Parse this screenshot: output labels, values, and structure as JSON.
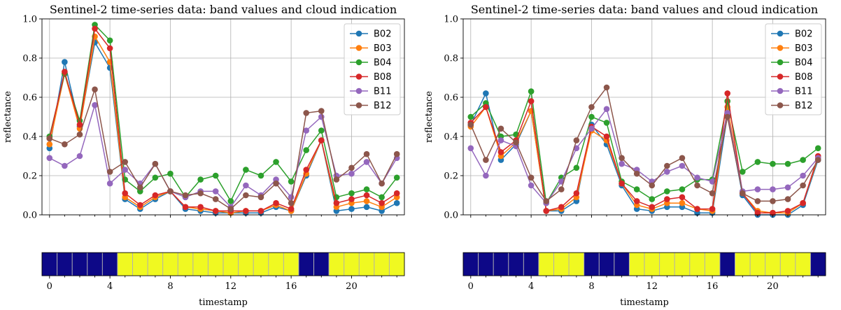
{
  "chart_data": [
    {
      "type": "line",
      "title": "Sentinel-2 time-series data: band values and cloud indication",
      "xlabel": "timestamp",
      "ylabel": "reflectance",
      "xlim": [
        -0.5,
        23.5
      ],
      "ylim": [
        0.0,
        1.0
      ],
      "yticks": [
        "0.0",
        "0.2",
        "0.4",
        "0.6",
        "0.8",
        "1.0"
      ],
      "xticks": [
        "0",
        "4",
        "8",
        "12",
        "16",
        "20"
      ],
      "grid": true,
      "legend": "top-right",
      "x": [
        0,
        1,
        2,
        3,
        4,
        5,
        6,
        7,
        8,
        9,
        10,
        11,
        12,
        13,
        14,
        15,
        16,
        17,
        18,
        19,
        20,
        21,
        22,
        23
      ],
      "series": [
        {
          "name": "B02",
          "color": "#1f77b4",
          "values": [
            0.34,
            0.78,
            0.45,
            0.88,
            0.75,
            0.08,
            0.03,
            0.08,
            0.12,
            0.03,
            0.02,
            0.01,
            0.01,
            0.01,
            0.01,
            0.04,
            0.02,
            0.2,
            0.38,
            0.02,
            0.03,
            0.04,
            0.02,
            0.06
          ]
        },
        {
          "name": "B03",
          "color": "#ff7f0e",
          "values": [
            0.36,
            0.72,
            0.44,
            0.91,
            0.78,
            0.09,
            0.04,
            0.09,
            0.12,
            0.04,
            0.03,
            0.02,
            0.01,
            0.02,
            0.02,
            0.05,
            0.02,
            0.21,
            0.38,
            0.04,
            0.06,
            0.07,
            0.04,
            0.09
          ]
        },
        {
          "name": "B04",
          "color": "#2ca02c",
          "values": [
            0.4,
            0.72,
            0.48,
            0.97,
            0.89,
            0.18,
            0.12,
            0.19,
            0.21,
            0.09,
            0.18,
            0.2,
            0.07,
            0.23,
            0.2,
            0.27,
            0.17,
            0.33,
            0.43,
            0.09,
            0.11,
            0.13,
            0.09,
            0.19
          ]
        },
        {
          "name": "B08",
          "color": "#d62728",
          "values": [
            0.39,
            0.73,
            0.46,
            0.95,
            0.85,
            0.11,
            0.05,
            0.1,
            0.12,
            0.04,
            0.04,
            0.02,
            0.02,
            0.02,
            0.02,
            0.06,
            0.03,
            0.23,
            0.38,
            0.06,
            0.08,
            0.1,
            0.06,
            0.11
          ]
        },
        {
          "name": "B11",
          "color": "#9467bd",
          "values": [
            0.29,
            0.25,
            0.3,
            0.56,
            0.16,
            0.23,
            0.16,
            0.26,
            0.12,
            0.09,
            0.12,
            0.12,
            0.04,
            0.15,
            0.1,
            0.18,
            0.09,
            0.43,
            0.5,
            0.2,
            0.21,
            0.27,
            0.16,
            0.29
          ]
        },
        {
          "name": "B12",
          "color": "#8c564b",
          "values": [
            0.39,
            0.36,
            0.41,
            0.64,
            0.22,
            0.27,
            0.14,
            0.26,
            0.12,
            0.1,
            0.11,
            0.08,
            0.03,
            0.1,
            0.09,
            0.16,
            0.06,
            0.52,
            0.53,
            0.18,
            0.24,
            0.31,
            0.16,
            0.31
          ]
        }
      ],
      "cloud_indication": {
        "type": "heatmap",
        "colormap": [
          "#0d0887",
          "#f0f921"
        ],
        "values": [
          0,
          0,
          0,
          0,
          0,
          1,
          1,
          1,
          1,
          1,
          1,
          1,
          1,
          1,
          1,
          1,
          1,
          0,
          0,
          1,
          1,
          1,
          1,
          1
        ]
      }
    },
    {
      "type": "line",
      "title": "Sentinel-2 time-series data: band values and cloud indication",
      "xlabel": "timestamp",
      "ylabel": "reflectance",
      "xlim": [
        -0.5,
        23.5
      ],
      "ylim": [
        0.0,
        1.0
      ],
      "yticks": [
        "0.0",
        "0.2",
        "0.4",
        "0.6",
        "0.8",
        "1.0"
      ],
      "xticks": [
        "0",
        "4",
        "8",
        "12",
        "16",
        "20"
      ],
      "grid": true,
      "legend": "top-right",
      "x": [
        0,
        1,
        2,
        3,
        4,
        5,
        6,
        7,
        8,
        9,
        10,
        11,
        12,
        13,
        14,
        15,
        16,
        17,
        18,
        19,
        20,
        21,
        22,
        23
      ],
      "series": [
        {
          "name": "B02",
          "color": "#1f77b4",
          "values": [
            0.46,
            0.62,
            0.28,
            0.36,
            0.53,
            0.02,
            0.02,
            0.07,
            0.46,
            0.36,
            0.15,
            0.03,
            0.02,
            0.04,
            0.04,
            0.01,
            0.01,
            0.51,
            0.1,
            0.0,
            0.0,
            0.0,
            0.05,
            0.28
          ]
        },
        {
          "name": "B03",
          "color": "#ff7f0e",
          "values": [
            0.45,
            0.55,
            0.3,
            0.37,
            0.53,
            0.02,
            0.03,
            0.09,
            0.43,
            0.38,
            0.16,
            0.05,
            0.03,
            0.06,
            0.06,
            0.03,
            0.02,
            0.55,
            0.11,
            0.02,
            0.01,
            0.01,
            0.06,
            0.29
          ]
        },
        {
          "name": "B04",
          "color": "#2ca02c",
          "values": [
            0.5,
            0.57,
            0.4,
            0.41,
            0.63,
            0.06,
            0.19,
            0.24,
            0.5,
            0.47,
            0.17,
            0.13,
            0.08,
            0.12,
            0.13,
            0.18,
            0.18,
            0.58,
            0.22,
            0.27,
            0.26,
            0.26,
            0.28,
            0.34
          ]
        },
        {
          "name": "B08",
          "color": "#d62728",
          "values": [
            0.47,
            0.55,
            0.32,
            0.38,
            0.58,
            0.02,
            0.04,
            0.11,
            0.45,
            0.4,
            0.16,
            0.07,
            0.04,
            0.08,
            0.09,
            0.03,
            0.03,
            0.62,
            0.11,
            0.01,
            0.01,
            0.02,
            0.06,
            0.3
          ]
        },
        {
          "name": "B11",
          "color": "#9467bd",
          "values": [
            0.34,
            0.2,
            0.38,
            0.35,
            0.15,
            0.06,
            0.17,
            0.34,
            0.44,
            0.54,
            0.26,
            0.23,
            0.17,
            0.22,
            0.25,
            0.19,
            0.17,
            0.52,
            0.12,
            0.13,
            0.13,
            0.14,
            0.2,
            0.29
          ]
        },
        {
          "name": "B12",
          "color": "#8c564b",
          "values": [
            0.46,
            0.28,
            0.44,
            0.37,
            0.19,
            0.07,
            0.13,
            0.38,
            0.55,
            0.65,
            0.29,
            0.21,
            0.15,
            0.25,
            0.29,
            0.15,
            0.11,
            0.5,
            0.11,
            0.07,
            0.07,
            0.08,
            0.15,
            0.28
          ]
        }
      ],
      "cloud_indication": {
        "type": "heatmap",
        "colormap": [
          "#0d0887",
          "#f0f921"
        ],
        "values": [
          0,
          0,
          0,
          0,
          0,
          1,
          1,
          1,
          0,
          0,
          0,
          1,
          1,
          1,
          1,
          1,
          1,
          0,
          1,
          1,
          1,
          1,
          1,
          0
        ]
      }
    }
  ]
}
